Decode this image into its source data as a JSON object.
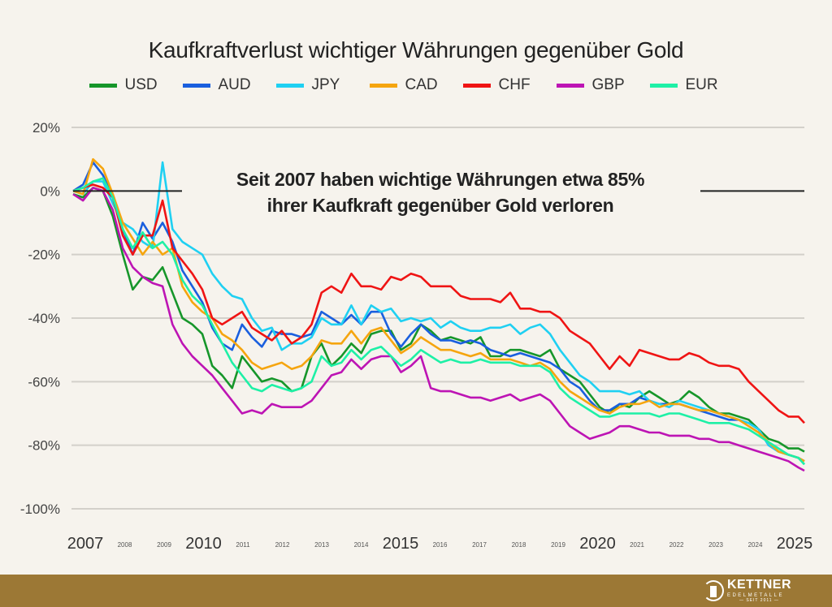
{
  "chart_data": {
    "type": "line",
    "title": "Kaufkraftverlust wichtiger Währungen gegenüber Gold",
    "annotation": [
      "Seit 2007 haben wichtige Währungen etwa 85%",
      "ihrer Kaufkraft gegenüber Gold verloren"
    ],
    "xlabel": "",
    "ylabel": "",
    "ylim": [
      -100,
      20
    ],
    "xlim": [
      2007,
      2025.4
    ],
    "yticks": [
      20,
      0,
      -20,
      -40,
      -60,
      -80,
      -100
    ],
    "ytick_labels": [
      "20%",
      "0%",
      "-20%",
      "-40%",
      "-60%",
      "-80%",
      "-100%"
    ],
    "xticks_major": [
      2007,
      2010,
      2015,
      2020,
      2025
    ],
    "xticks_minor": [
      2008,
      2009,
      2011,
      2012,
      2013,
      2014,
      2016,
      2017,
      2018,
      2019,
      2021,
      2022,
      2023,
      2024
    ],
    "grid": true,
    "legend_placement": "top-center",
    "x": [
      2007.0,
      2007.25,
      2007.5,
      2007.75,
      2008.0,
      2008.25,
      2008.5,
      2008.75,
      2009.0,
      2009.25,
      2009.5,
      2009.75,
      2010.0,
      2010.25,
      2010.5,
      2010.75,
      2011.0,
      2011.25,
      2011.5,
      2011.75,
      2012.0,
      2012.25,
      2012.5,
      2012.75,
      2013.0,
      2013.25,
      2013.5,
      2013.75,
      2014.0,
      2014.25,
      2014.5,
      2014.75,
      2015.0,
      2015.25,
      2015.5,
      2015.75,
      2016.0,
      2016.25,
      2016.5,
      2016.75,
      2017.0,
      2017.25,
      2017.5,
      2017.75,
      2018.0,
      2018.25,
      2018.5,
      2018.75,
      2019.0,
      2019.25,
      2019.5,
      2019.75,
      2020.0,
      2020.25,
      2020.5,
      2020.75,
      2021.0,
      2021.25,
      2021.5,
      2021.75,
      2022.0,
      2022.25,
      2022.5,
      2022.75,
      2023.0,
      2023.25,
      2023.5,
      2023.75,
      2024.0,
      2024.25,
      2024.5,
      2024.75,
      2025.0,
      2025.25,
      2025.4
    ],
    "series": [
      {
        "name": "USD",
        "color": "#16962a",
        "values": [
          -1,
          -2,
          1,
          0,
          -8,
          -20,
          -31,
          -27,
          -28,
          -24,
          -32,
          -40,
          -42,
          -45,
          -55,
          -58,
          -62,
          -52,
          -56,
          -60,
          -59,
          -60,
          -63,
          -62,
          -52,
          -48,
          -55,
          -52,
          -48,
          -51,
          -45,
          -44,
          -44,
          -50,
          -48,
          -42,
          -44,
          -47,
          -46,
          -47,
          -48,
          -46,
          -52,
          -52,
          -50,
          -50,
          -51,
          -52,
          -50,
          -56,
          -58,
          -60,
          -64,
          -68,
          -70,
          -67,
          -68,
          -65,
          -63,
          -65,
          -67,
          -66,
          -63,
          -65,
          -68,
          -70,
          -70,
          -71,
          -72,
          -75,
          -78,
          -79,
          -81,
          -81,
          -82
        ]
      },
      {
        "name": "AUD",
        "color": "#1a5fde",
        "values": [
          0,
          2,
          9,
          5,
          -2,
          -12,
          -20,
          -10,
          -15,
          -10,
          -16,
          -25,
          -30,
          -35,
          -43,
          -48,
          -50,
          -42,
          -46,
          -49,
          -44,
          -45,
          -45,
          -46,
          -45,
          -38,
          -40,
          -42,
          -39,
          -42,
          -38,
          -38,
          -45,
          -49,
          -45,
          -42,
          -45,
          -47,
          -47,
          -48,
          -47,
          -48,
          -50,
          -51,
          -52,
          -51,
          -52,
          -53,
          -54,
          -56,
          -60,
          -62,
          -66,
          -69,
          -69,
          -67,
          -67,
          -65,
          -66,
          -67,
          -67,
          -67,
          -68,
          -69,
          -70,
          -71,
          -72,
          -72,
          -73,
          -75,
          -80,
          -82,
          -83,
          -84,
          -85
        ]
      },
      {
        "name": "JPY",
        "color": "#1fd0f2",
        "values": [
          0,
          -1,
          3,
          3,
          -4,
          -10,
          -12,
          -16,
          -18,
          9,
          -12,
          -16,
          -18,
          -20,
          -26,
          -30,
          -33,
          -34,
          -40,
          -44,
          -43,
          -50,
          -48,
          -48,
          -46,
          -40,
          -42,
          -42,
          -36,
          -42,
          -36,
          -38,
          -37,
          -41,
          -40,
          -41,
          -40,
          -43,
          -41,
          -43,
          -44,
          -44,
          -43,
          -43,
          -42,
          -45,
          -43,
          -42,
          -45,
          -50,
          -54,
          -58,
          -60,
          -63,
          -63,
          -63,
          -64,
          -63,
          -66,
          -67,
          -68,
          -66,
          -67,
          -68,
          -69,
          -70,
          -71,
          -72,
          -73,
          -75,
          -80,
          -82,
          -83,
          -84,
          -86
        ]
      },
      {
        "name": "CAD",
        "color": "#f5a50f",
        "values": [
          0,
          -1,
          10,
          7,
          -1,
          -10,
          -15,
          -20,
          -16,
          -20,
          -18,
          -30,
          -35,
          -38,
          -40,
          -45,
          -47,
          -50,
          -54,
          -56,
          -55,
          -54,
          -56,
          -55,
          -52,
          -47,
          -48,
          -48,
          -44,
          -48,
          -44,
          -43,
          -47,
          -51,
          -49,
          -46,
          -48,
          -50,
          -50,
          -51,
          -52,
          -51,
          -53,
          -53,
          -53,
          -54,
          -55,
          -54,
          -56,
          -60,
          -63,
          -65,
          -67,
          -69,
          -70,
          -68,
          -67,
          -67,
          -66,
          -68,
          -67,
          -67,
          -68,
          -69,
          -69,
          -70,
          -71,
          -72,
          -74,
          -76,
          -79,
          -82,
          -83,
          -84,
          -85
        ]
      },
      {
        "name": "CHF",
        "color": "#ef1414",
        "values": [
          0,
          1,
          2,
          1,
          -2,
          -14,
          -20,
          -14,
          -14,
          -3,
          -18,
          -22,
          -26,
          -31,
          -40,
          -42,
          -40,
          -38,
          -43,
          -45,
          -47,
          -44,
          -48,
          -46,
          -42,
          -32,
          -30,
          -32,
          -26,
          -30,
          -30,
          -31,
          -27,
          -28,
          -26,
          -27,
          -30,
          -30,
          -30,
          -33,
          -34,
          -34,
          -34,
          -35,
          -32,
          -37,
          -37,
          -38,
          -38,
          -40,
          -44,
          -46,
          -48,
          -52,
          -56,
          -52,
          -55,
          -50,
          -51,
          -52,
          -53,
          -53,
          -51,
          -52,
          -54,
          -55,
          -55,
          -56,
          -60,
          -63,
          -66,
          -69,
          -71,
          -71,
          -73
        ]
      },
      {
        "name": "GBP",
        "color": "#bd14b4",
        "values": [
          -1,
          -3,
          1,
          0,
          -6,
          -18,
          -24,
          -27,
          -29,
          -30,
          -42,
          -48,
          -52,
          -55,
          -58,
          -62,
          -66,
          -70,
          -69,
          -70,
          -67,
          -68,
          -68,
          -68,
          -66,
          -62,
          -58,
          -57,
          -53,
          -56,
          -53,
          -52,
          -52,
          -57,
          -55,
          -52,
          -62,
          -63,
          -63,
          -64,
          -65,
          -65,
          -66,
          -65,
          -64,
          -66,
          -65,
          -64,
          -66,
          -70,
          -74,
          -76,
          -78,
          -77,
          -76,
          -74,
          -74,
          -75,
          -76,
          -76,
          -77,
          -77,
          -77,
          -78,
          -78,
          -79,
          -79,
          -80,
          -81,
          -82,
          -83,
          -84,
          -85,
          -87,
          -88
        ]
      },
      {
        "name": "EUR",
        "color": "#1ef0a6",
        "values": [
          0,
          1,
          3,
          4,
          -2,
          -12,
          -18,
          -13,
          -18,
          -16,
          -20,
          -28,
          -33,
          -36,
          -42,
          -48,
          -54,
          -58,
          -62,
          -63,
          -61,
          -62,
          -63,
          -62,
          -60,
          -52,
          -55,
          -54,
          -50,
          -53,
          -50,
          -49,
          -52,
          -55,
          -53,
          -50,
          -52,
          -54,
          -53,
          -54,
          -54,
          -53,
          -54,
          -54,
          -54,
          -55,
          -55,
          -55,
          -57,
          -62,
          -65,
          -67,
          -69,
          -71,
          -71,
          -70,
          -70,
          -70,
          -70,
          -71,
          -70,
          -70,
          -71,
          -72,
          -73,
          -73,
          -73,
          -74,
          -75,
          -77,
          -79,
          -81,
          -83,
          -84,
          -86
        ]
      }
    ]
  },
  "branding": {
    "logo_name": "KETTNER",
    "logo_sub": "EDELMETALLE",
    "logo_since": "— SEIT 2011 —"
  },
  "colors": {
    "background": "#f6f3ed",
    "footer": "#9c7835",
    "grid": "#d3d0ca",
    "zero_line": "#222222"
  }
}
